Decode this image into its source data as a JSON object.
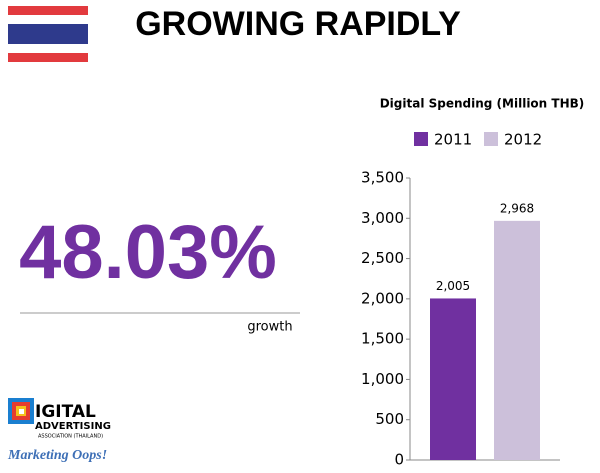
{
  "header": {
    "title": "GROWING RAPIDLY"
  },
  "stat": {
    "value": "48.03%",
    "caption": "growth"
  },
  "logo": {
    "mark": "IGITAL",
    "line1": "ADVERTISING",
    "line2": "ASSOCIATION (THAILAND)",
    "brand": "Marketing Oops!"
  },
  "chart_data": {
    "type": "bar",
    "title": "Digital Spending (Million THB)",
    "categories": [
      null
    ],
    "series": [
      {
        "name": "2011",
        "color": "#7030a0",
        "values": [
          2005
        ],
        "value_labels": [
          "2,005"
        ]
      },
      {
        "name": "2012",
        "color": "#ccc0da",
        "values": [
          2968
        ],
        "value_labels": [
          "2,968"
        ]
      }
    ],
    "ylim": [
      0,
      3500
    ],
    "yticks": [
      0,
      500,
      {
        "value": 1000,
        "label": "1,000"
      },
      {
        "value": 1500,
        "label": "1,500"
      },
      {
        "value": 2000,
        "label": "2,000"
      },
      {
        "value": 2500,
        "label": "2,500"
      },
      {
        "value": 3000,
        "label": "3,000"
      },
      {
        "value": 3500,
        "label": "3,500"
      }
    ],
    "legend": "top",
    "grid": false
  }
}
